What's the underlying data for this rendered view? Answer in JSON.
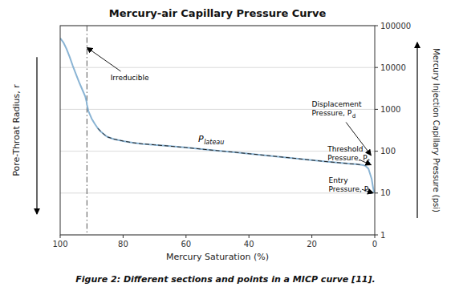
{
  "chart_data": {
    "type": "line",
    "title": "Mercury-air Capillary Pressure Curve",
    "x_label": "Mercury Saturation (%)",
    "y_label": "Mercury Injection Capillary Pressure (psi)",
    "y_label_left": "Pore-Throat Radius, r",
    "caption": "Figure 2: Different sections and points in a MICP curve [11].",
    "log": "y",
    "grid": true,
    "xlim": [
      100,
      0
    ],
    "xticks": [
      100,
      80,
      60,
      40,
      20,
      0
    ],
    "ylim": [
      1,
      100000
    ],
    "yticks": [
      1,
      10,
      100,
      1000,
      10000,
      100000
    ],
    "series": [
      {
        "color": "#8ab4d4",
        "line_style": "solid",
        "x": [
          100,
          99,
          98,
          97,
          96,
          95,
          94,
          93,
          92,
          91.6,
          91.5,
          91,
          90,
          89,
          88,
          87,
          86,
          85,
          83,
          80,
          77,
          74,
          70,
          65,
          60,
          55,
          50,
          45,
          40,
          35,
          30,
          25,
          20,
          15,
          10,
          8,
          6,
          5,
          4,
          3,
          2,
          1,
          0.5,
          0.1
        ],
        "values": [
          50000,
          40000,
          28000,
          18000,
          11000,
          7000,
          4500,
          3000,
          2000,
          1500,
          1300,
          900,
          600,
          450,
          350,
          290,
          250,
          220,
          195,
          175,
          160,
          150,
          142,
          132,
          122,
          112,
          103,
          95,
          87,
          80,
          73,
          67,
          61,
          56,
          52,
          50,
          49,
          48,
          47,
          45,
          38,
          22,
          13,
          10
        ]
      },
      {
        "color": "#222222",
        "line_style": "dashed",
        "x": [
          88,
          87,
          86,
          85,
          83,
          80,
          77,
          74,
          70,
          65,
          60,
          55,
          50,
          45,
          40,
          35,
          30,
          25,
          20,
          15,
          10,
          8,
          6,
          5,
          4
        ],
        "values": [
          350,
          290,
          250,
          220,
          195,
          175,
          160,
          150,
          142,
          132,
          122,
          112,
          103,
          95,
          87,
          80,
          73,
          67,
          61,
          56,
          52,
          50,
          49,
          48,
          47
        ]
      }
    ],
    "reference_lines": [
      {
        "x": 91.5,
        "color": "#555555",
        "line_style": "dashdot"
      }
    ],
    "annotations": [
      {
        "text": "Irreducible",
        "x": 84,
        "y": 5000,
        "arrow_x": 91.5,
        "arrow_y": 30000
      },
      {
        "text": "P",
        "subscript": "lateau",
        "x": 52,
        "y": 130
      },
      {
        "lines": [
          "Displacement",
          "Pressure, P"
        ],
        "subscript": "d",
        "x": 20,
        "y": 700,
        "arrow_x": 1.2,
        "arrow_y": 80
      },
      {
        "lines": [
          "Threshold",
          "Pressure, P"
        ],
        "subscript": "t",
        "x": 15,
        "y": 60,
        "arrow_x": 1.2,
        "arrow_y": 47
      },
      {
        "lines": [
          "Entry",
          "Pressure, P"
        ],
        "subscript": "e",
        "x": 12,
        "y": 11,
        "arrow_x": 0.5,
        "arrow_y": 10
      }
    ]
  }
}
